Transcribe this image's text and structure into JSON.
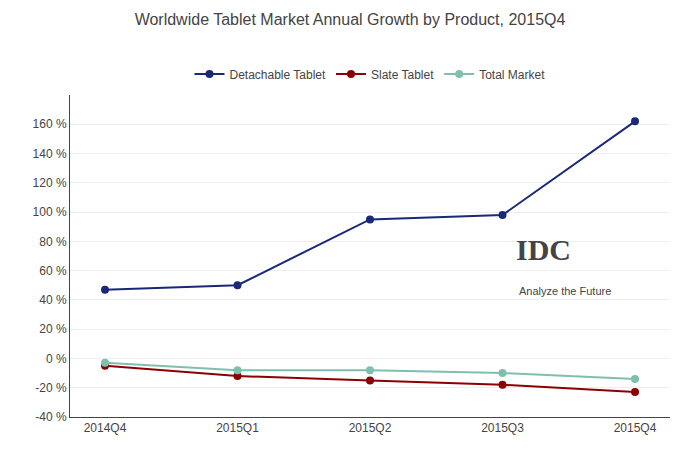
{
  "chart_data": {
    "type": "line",
    "title": "Worldwide Tablet Market Annual Growth by Product, 2015Q4",
    "categories": [
      "2014Q4",
      "2015Q1",
      "2015Q2",
      "2015Q3",
      "2015Q4"
    ],
    "series": [
      {
        "name": "Detachable Tablet",
        "color": "#1a2878",
        "values": [
          47,
          50,
          95,
          98,
          162
        ]
      },
      {
        "name": "Slate Tablet",
        "color": "#8b0000",
        "values": [
          -5,
          -12,
          -15,
          -18,
          -23
        ]
      },
      {
        "name": "Total Market",
        "color": "#7fbfaf",
        "values": [
          -3,
          -8,
          -8,
          -10,
          -14
        ]
      }
    ],
    "ylim": [
      -40,
      180
    ],
    "yticks": [
      {
        "value": -40,
        "label": "-40 %"
      },
      {
        "value": -20,
        "label": "-20 %"
      },
      {
        "value": 0,
        "label": "0 %"
      },
      {
        "value": 20,
        "label": "20 %"
      },
      {
        "value": 40,
        "label": "40 %"
      },
      {
        "value": 60,
        "label": "60 %"
      },
      {
        "value": 80,
        "label": "80 %"
      },
      {
        "value": 100,
        "label": "100 %"
      },
      {
        "value": 120,
        "label": "120 %"
      },
      {
        "value": 140,
        "label": "140 %"
      },
      {
        "value": 160,
        "label": "160 %"
      }
    ],
    "grid": true,
    "legend": "top",
    "marker": "circle",
    "line_style": "solid",
    "annotations": [
      "IDC",
      "Analyze the Future"
    ]
  }
}
